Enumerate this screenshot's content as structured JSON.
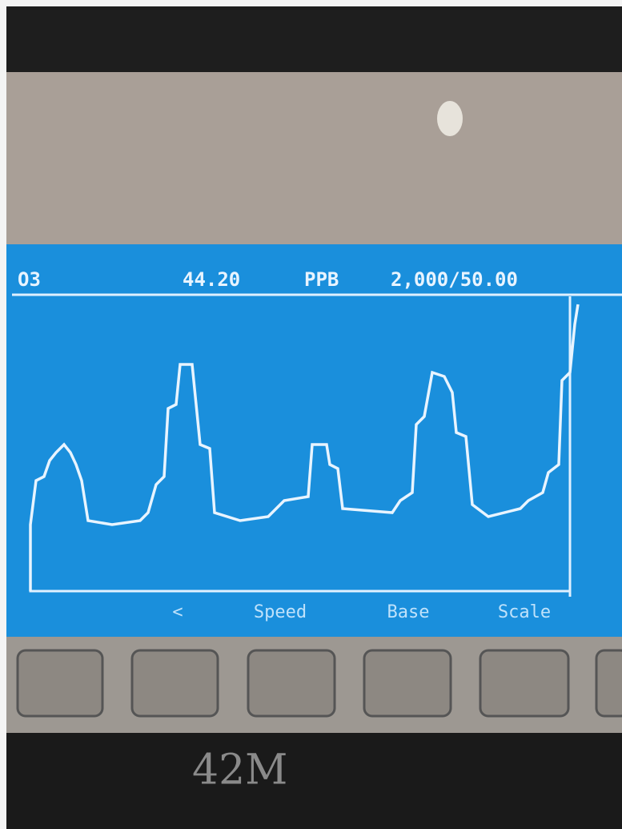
{
  "screen": {
    "gas": "O3",
    "reading": "44.20",
    "unit": "PPB",
    "range": "2,000/50.00"
  },
  "menu": [
    "<",
    "Speed",
    "Base",
    "Scale"
  ],
  "device": {
    "model": "42M"
  }
}
